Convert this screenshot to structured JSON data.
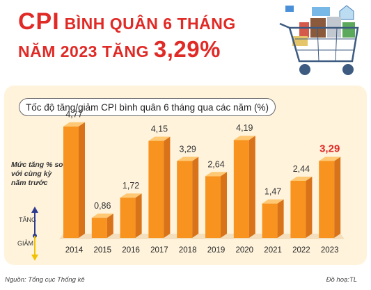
{
  "header": {
    "title_part1": "CPI",
    "title_part2": "BÌNH QUÂN 6 THÁNG",
    "title_part3": "NĂM 2023 TĂNG",
    "title_value": "3,29%"
  },
  "chart_data": {
    "type": "bar",
    "title": "Tốc độ tăng/giảm CPI bình quân 6 tháng qua các năm (%)",
    "xlabel": "",
    "ylabel": "Mức tăng % so với cùng kỳ năm trước",
    "categories": [
      "2014",
      "2015",
      "2016",
      "2017",
      "2018",
      "2019",
      "2020",
      "2021",
      "2022",
      "2023"
    ],
    "values": [
      4.77,
      0.86,
      1.72,
      4.15,
      3.29,
      2.64,
      4.19,
      1.47,
      2.44,
      3.29
    ],
    "value_labels": [
      "4,77",
      "0,86",
      "1,72",
      "4,15",
      "3,29",
      "2,64",
      "4,19",
      "1,47",
      "2,44",
      "3,29"
    ],
    "highlight_index": 9,
    "grid": false,
    "colors": {
      "bar_front": "#f7931e",
      "bar_side": "#d9731a",
      "bar_top": "#ffc874",
      "label": "#333333",
      "highlight_label": "#e02a26"
    }
  },
  "legend": {
    "text": "Mức tăng % so với cùng kỳ năm trước",
    "up_label": "TĂNG",
    "down_label": "GIẢM",
    "arrow_up_color": "#2e3b8f",
    "arrow_down_color": "#f2c200"
  },
  "footer": {
    "source": "Nguồn: Tổng cục Thống kê",
    "credit": "Đồ hoạ:TL"
  },
  "colors": {
    "accent": "#e02a26",
    "panel": "#fff3dc"
  }
}
